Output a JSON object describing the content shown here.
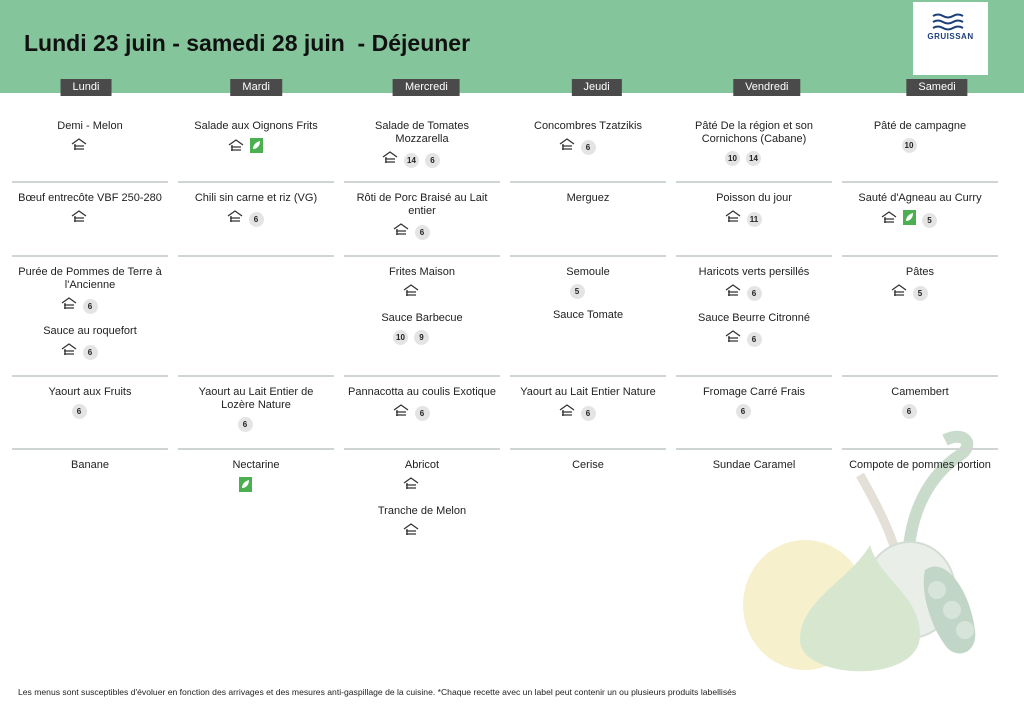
{
  "header": {
    "title": "Lundi 23 juin - samedi 28 juin  - Déjeuner",
    "logo": "GRUISSAN"
  },
  "days": [
    {
      "name": "Lundi",
      "rows": [
        [
          {
            "name": "Demi - Melon",
            "homemade": true,
            "badges": []
          }
        ],
        [
          {
            "name": "Bœuf entrecôte VBF 250-280",
            "homemade": true,
            "badges": []
          }
        ],
        [
          {
            "name": "Purée de Pommes de Terre à l'Ancienne",
            "homemade": true,
            "badges": [
              "6"
            ]
          },
          {
            "name": "Sauce au roquefort",
            "homemade": true,
            "badges": [
              "6"
            ]
          }
        ],
        [
          {
            "name": "Yaourt aux Fruits",
            "badges": [
              "6"
            ]
          }
        ],
        [
          {
            "name": "Banane",
            "badges": []
          }
        ]
      ]
    },
    {
      "name": "Mardi",
      "rows": [
        [
          {
            "name": "Salade aux Oignons Frits",
            "homemade": true,
            "organic": true,
            "badges": []
          }
        ],
        [
          {
            "name": "Chili sin carne et riz (VG)",
            "homemade": true,
            "badges": [
              "6"
            ]
          }
        ],
        [],
        [
          {
            "name": "Yaourt au Lait Entier de Lozère Nature",
            "badges": [
              "6"
            ]
          }
        ],
        [
          {
            "name": "Nectarine",
            "organic": true,
            "badges": []
          }
        ]
      ]
    },
    {
      "name": "Mercredi",
      "rows": [
        [
          {
            "name": "Salade de Tomates Mozzarella",
            "homemade": true,
            "badges": [
              "14",
              "6"
            ]
          }
        ],
        [
          {
            "name": "Rôti de Porc Braisé au Lait entier",
            "homemade": true,
            "badges": [
              "6"
            ]
          }
        ],
        [
          {
            "name": "Frites Maison",
            "homemade": true,
            "badges": []
          },
          {
            "name": "Sauce Barbecue",
            "badges": [
              "10",
              "9"
            ]
          }
        ],
        [
          {
            "name": "Pannacotta au coulis Exotique",
            "homemade": true,
            "badges": [
              "6"
            ]
          }
        ],
        [
          {
            "name": "Abricot",
            "homemade": true,
            "badges": []
          },
          {
            "name": "Tranche de Melon",
            "homemade": true,
            "badges": []
          }
        ]
      ]
    },
    {
      "name": "Jeudi",
      "rows": [
        [
          {
            "name": "Concombres Tzatzikis",
            "homemade": true,
            "badges": [
              "6"
            ]
          }
        ],
        [
          {
            "name": "Merguez",
            "badges": []
          }
        ],
        [
          {
            "name": "Semoule",
            "badges": [
              "5"
            ]
          },
          {
            "name": "Sauce Tomate",
            "badges": []
          }
        ],
        [
          {
            "name": "Yaourt au Lait Entier Nature",
            "homemade": true,
            "badges": [
              "6"
            ]
          }
        ],
        [
          {
            "name": "Cerise",
            "badges": []
          }
        ]
      ]
    },
    {
      "name": "Vendredi",
      "rows": [
        [
          {
            "name": "Pâté De la région et son Cornichons (Cabane)",
            "badges": [
              "10",
              "14"
            ]
          }
        ],
        [
          {
            "name": "Poisson du jour",
            "homemade": true,
            "badges": [
              "11"
            ]
          }
        ],
        [
          {
            "name": "Haricots verts persillés",
            "homemade": true,
            "badges": [
              "6"
            ]
          },
          {
            "name": "Sauce Beurre Citronné",
            "homemade": true,
            "badges": [
              "6"
            ]
          }
        ],
        [
          {
            "name": "Fromage Carré Frais",
            "badges": [
              "6"
            ]
          }
        ],
        [
          {
            "name": "Sundae Caramel",
            "badges": []
          }
        ]
      ]
    },
    {
      "name": "Samedi",
      "rows": [
        [
          {
            "name": "Pâté de campagne",
            "badges": [
              "10"
            ]
          }
        ],
        [
          {
            "name": "Sauté d'Agneau au Curry",
            "homemade": true,
            "organic": true,
            "badges": [
              "5"
            ]
          }
        ],
        [
          {
            "name": "Pâtes",
            "homemade": true,
            "badges": [
              "5"
            ]
          }
        ],
        [
          {
            "name": "Camembert",
            "badges": [
              "6"
            ]
          }
        ],
        [
          {
            "name": "Compote de pommes portion",
            "badges": []
          }
        ]
      ]
    }
  ],
  "footer": "Les menus sont susceptibles d'évoluer en fonction des arrivages et des mesures anti-gaspillage de la cuisine. *Chaque recette avec un label peut contenir un ou plusieurs produits labellisés"
}
